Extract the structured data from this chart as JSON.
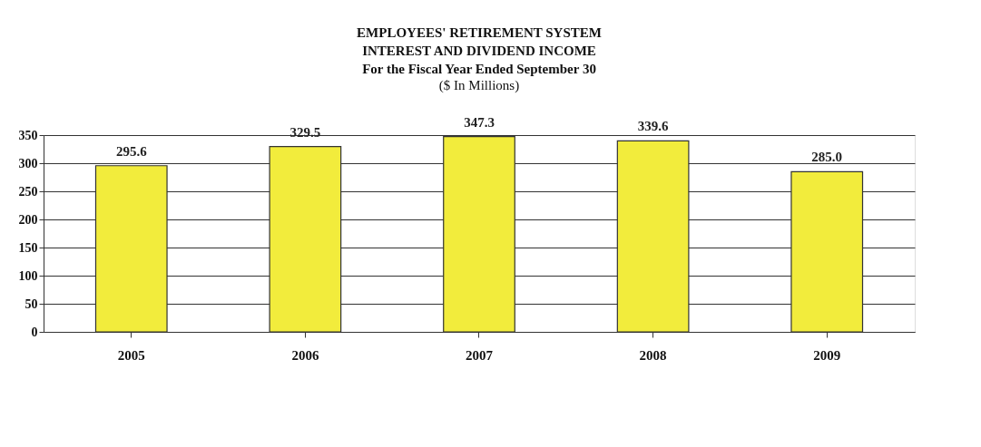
{
  "chart_data": {
    "type": "bar",
    "title": "EMPLOYEES' RETIREMENT SYSTEM\nINTEREST AND DIVIDEND INCOME\nFor the Fiscal Year Ended September 30",
    "subtitle": "($ In Millions)",
    "categories": [
      "2005",
      "2006",
      "2007",
      "2008",
      "2009"
    ],
    "values": [
      295.6,
      329.5,
      347.3,
      339.6,
      285.0
    ],
    "value_labels": [
      "295.6",
      "329.5",
      "347.3",
      "339.6",
      "285.0"
    ],
    "color": "#f2ec3c",
    "ylim": [
      0,
      350
    ],
    "yticks": [
      0,
      50,
      100,
      150,
      200,
      250,
      300,
      350
    ],
    "grid": "y"
  }
}
